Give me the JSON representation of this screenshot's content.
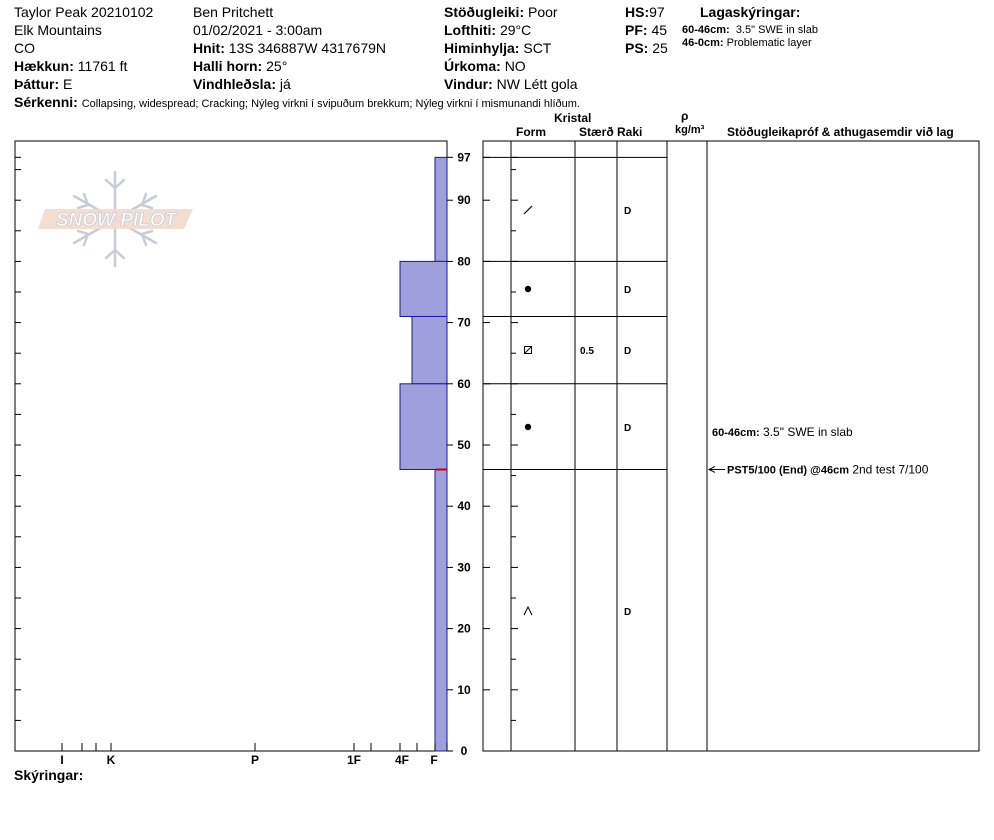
{
  "header": {
    "site": "Taylor Peak 20210102",
    "range": "Elk Mountains",
    "state": "CO",
    "elevation_label": "Hækkun:",
    "elevation": "11761 ft",
    "aspect_label": "Þáttur:",
    "aspect": "E",
    "observer": "Ben Pritchett",
    "datetime": "01/02/2021 - 3:00am",
    "coords_label": "Hnit:",
    "coords": "13S 346887W 4317679N",
    "slope_label": "Halli horn:",
    "slope": "25°",
    "wind_loading_label": "Vindhleðsla:",
    "wind_loading": "já",
    "stability_label": "Stöðugleiki:",
    "stability": "Poor",
    "air_temp_label": "Lofthiti:",
    "air_temp": "29°C",
    "sky_label": "Himinhylja:",
    "sky": "SCT",
    "precip_label": "Úrkoma:",
    "precip": "NO",
    "wind_label": "Vindur:",
    "wind": "NW Létt gola",
    "hs_label": "HS:",
    "hs": "97",
    "pf_label": "PF:",
    "pf": "45",
    "ps_label": "PS:",
    "ps": "25",
    "layer_notes_title": "Lagaskýringar:",
    "layer_notes": [
      {
        "range": "60-46cm:",
        "text": "3.5\" SWE in slab"
      },
      {
        "range": "46-0cm:",
        "text": "Problematic layer"
      }
    ],
    "features_label": "Sérkenni:",
    "features": "Collapsing, widespread;  Cracking;  Nýleg virkni í svipuðum brekkum;  Nýleg virkni í mismunandi hlíðum."
  },
  "table_header": {
    "crystal": "Kristal",
    "form": "Form",
    "size": "Stærð",
    "moisture": "Raki",
    "rho": "ρ",
    "density_unit": "kg/m³",
    "tests": "Stöðugleikapróf & athugasemdir við lag"
  },
  "footer": {
    "notes_label": "Skýringar:"
  },
  "logo": {
    "text": "SNOW PILOT"
  },
  "colors": {
    "layer_fill": "#9f9fdd",
    "layer_stroke": "#1a1aa0",
    "red_mark": "#cc0000"
  },
  "chart_data": {
    "type": "snow-profile",
    "y_axis": {
      "min": 0,
      "max": 97,
      "ticks": [
        0,
        10,
        20,
        30,
        40,
        50,
        60,
        70,
        80,
        90,
        97
      ]
    },
    "hardness_scale": [
      "I",
      "K",
      "P",
      "1F",
      "4F",
      "F"
    ],
    "hardness_layers": [
      {
        "top": 97,
        "bottom": 80,
        "hardness": "F"
      },
      {
        "top": 80,
        "bottom": 71,
        "hardness": "4F"
      },
      {
        "top": 71,
        "bottom": 60,
        "hardness": "4F-"
      },
      {
        "top": 60,
        "bottom": 46,
        "hardness": "4F"
      },
      {
        "top": 46,
        "bottom": 0,
        "hardness": "F"
      }
    ],
    "layer_boundaries": [
      97,
      80,
      71,
      60,
      46,
      0
    ],
    "layers": [
      {
        "top": 97,
        "bottom": 80,
        "form": "decomposing",
        "size": "",
        "moisture": "D"
      },
      {
        "top": 80,
        "bottom": 71,
        "form": "rounded",
        "size": "",
        "moisture": "D"
      },
      {
        "top": 71,
        "bottom": 60,
        "form": "faceted",
        "size": "0.5",
        "moisture": "D"
      },
      {
        "top": 60,
        "bottom": 46,
        "form": "rounded",
        "size": "",
        "moisture": "D"
      },
      {
        "top": 46,
        "bottom": 0,
        "form": "depth-hoar",
        "size": "",
        "moisture": "D"
      }
    ],
    "comments": [
      {
        "height": 50.5,
        "label": "60-46cm:",
        "text": "3.5\" SWE in slab"
      },
      {
        "height": 46,
        "label": "PST5/100 (End) @46cm",
        "text": "2nd test 7/100",
        "arrow": true
      }
    ]
  }
}
